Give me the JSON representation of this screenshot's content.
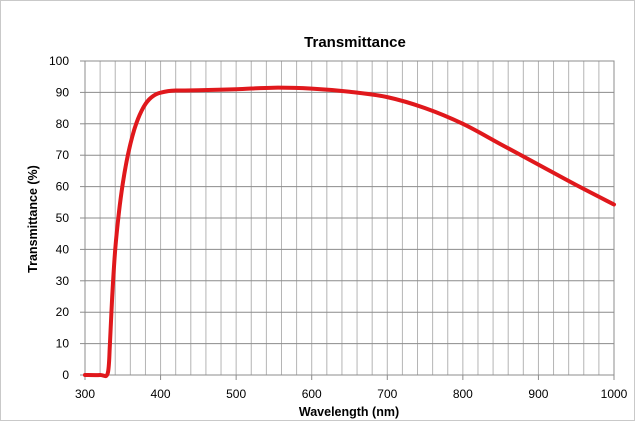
{
  "chart_data": {
    "type": "line",
    "title": "Transmittance",
    "xlabel": "Wavelength (nm)",
    "ylabel": "Transmittance (%)",
    "xlim": [
      300,
      1000
    ],
    "ylim": [
      0,
      100
    ],
    "x_ticks": [
      "300",
      "400",
      "500",
      "600",
      "700",
      "800",
      "900",
      "1000"
    ],
    "y_ticks": [
      "0",
      "10",
      "20",
      "30",
      "40",
      "50",
      "60",
      "70",
      "80",
      "90",
      "100"
    ],
    "grid": true,
    "legend": "none",
    "series": [
      {
        "color": "#e0181c",
        "x": [
          300,
          320,
          330,
          333,
          336,
          340,
          345,
          350,
          355,
          360,
          365,
          370,
          375,
          380,
          385,
          390,
          395,
          400,
          410,
          420,
          430,
          450,
          500,
          550,
          600,
          650,
          700,
          750,
          800,
          850,
          900,
          950,
          1000
        ],
        "y": [
          0,
          0,
          0.5,
          10,
          25,
          40,
          52,
          61,
          68,
          73.5,
          78,
          81.5,
          84.2,
          86.3,
          87.8,
          88.8,
          89.5,
          89.9,
          90.4,
          90.6,
          90.6,
          90.7,
          91,
          91.5,
          91.2,
          90.2,
          88.5,
          85,
          80,
          73.5,
          67,
          60.5,
          54.3
        ]
      }
    ]
  }
}
